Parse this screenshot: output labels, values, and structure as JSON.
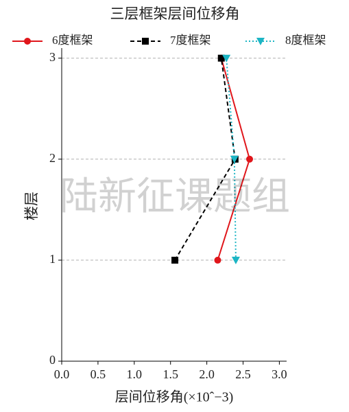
{
  "chart_data": {
    "type": "line",
    "title": "三层框架层间位移角",
    "x_label": "层间位移角(×10ˆ−3)",
    "y_label": "楼层",
    "watermark": "陆新征课题组",
    "y": [
      1,
      2,
      3
    ],
    "series": [
      {
        "name": "6度框架",
        "color": "#e0161b",
        "linestyle": "solid",
        "marker": "circle",
        "values": [
          2.15,
          2.59,
          2.2
        ]
      },
      {
        "name": "7度框架",
        "color": "#000000",
        "linestyle": "dashed",
        "marker": "square",
        "values": [
          1.56,
          2.39,
          2.2
        ]
      },
      {
        "name": "8度框架",
        "color": "#1cb5c4",
        "linestyle": "dotted",
        "marker": "triangle-down",
        "values": [
          2.4,
          2.38,
          2.27
        ]
      }
    ],
    "xlim": [
      0,
      3.1
    ],
    "ylim": [
      0,
      3.1
    ],
    "xticks": [
      {
        "value": 0,
        "label": "0.0"
      },
      {
        "value": 0.5,
        "label": "0.5"
      },
      {
        "value": 1,
        "label": "1.0"
      },
      {
        "value": 1.5,
        "label": "1.5"
      },
      {
        "value": 2,
        "label": "2.0"
      },
      {
        "value": 2.5,
        "label": "2.5"
      },
      {
        "value": 3,
        "label": "3.0"
      }
    ],
    "yticks": [
      0,
      1,
      2,
      3
    ],
    "grid": true
  }
}
